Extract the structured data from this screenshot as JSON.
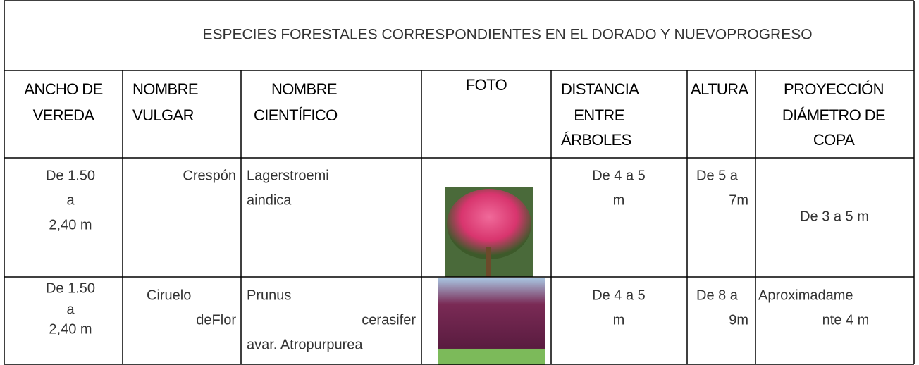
{
  "title": "ESPECIES FORESTALES CORRESPONDIENTES EN EL DORADO Y NUEVOPROGRESO",
  "headers": [
    [
      "ANCHO DE",
      "VEREDA"
    ],
    [
      "NOMBRE",
      "VULGAR"
    ],
    [
      "NOMBRE",
      "CIENTÍFICO"
    ],
    [
      "FOTO"
    ],
    [
      "DISTANCIA",
      "ENTRE",
      "ÁRBOLES"
    ],
    [
      "ALTURA"
    ],
    [
      "PROYECCIÓN",
      "DIÁMETRO DE",
      "COPA"
    ]
  ],
  "rows": [
    [
      [
        "De 1.50",
        "a",
        "2,40 m"
      ],
      [
        "Crespón"
      ],
      [
        "Lagerstroemi",
        "aindica"
      ],
      [
        "De 4 a 5",
        "m"
      ],
      [
        "De 5 a",
        "7m"
      ],
      [
        "De 3 a 5 m"
      ]
    ],
    [
      [
        "De 1.50",
        "a",
        "2,40 m"
      ],
      [
        "Ciruelo",
        "deFlor"
      ],
      [
        "Prunus",
        "cerasifer",
        "avar. Atropurpurea"
      ],
      [
        "De 4 a 5",
        "m"
      ],
      [
        "De 8 a",
        "9m"
      ],
      [
        "Aproximadame",
        "nte 4 m"
      ]
    ]
  ]
}
